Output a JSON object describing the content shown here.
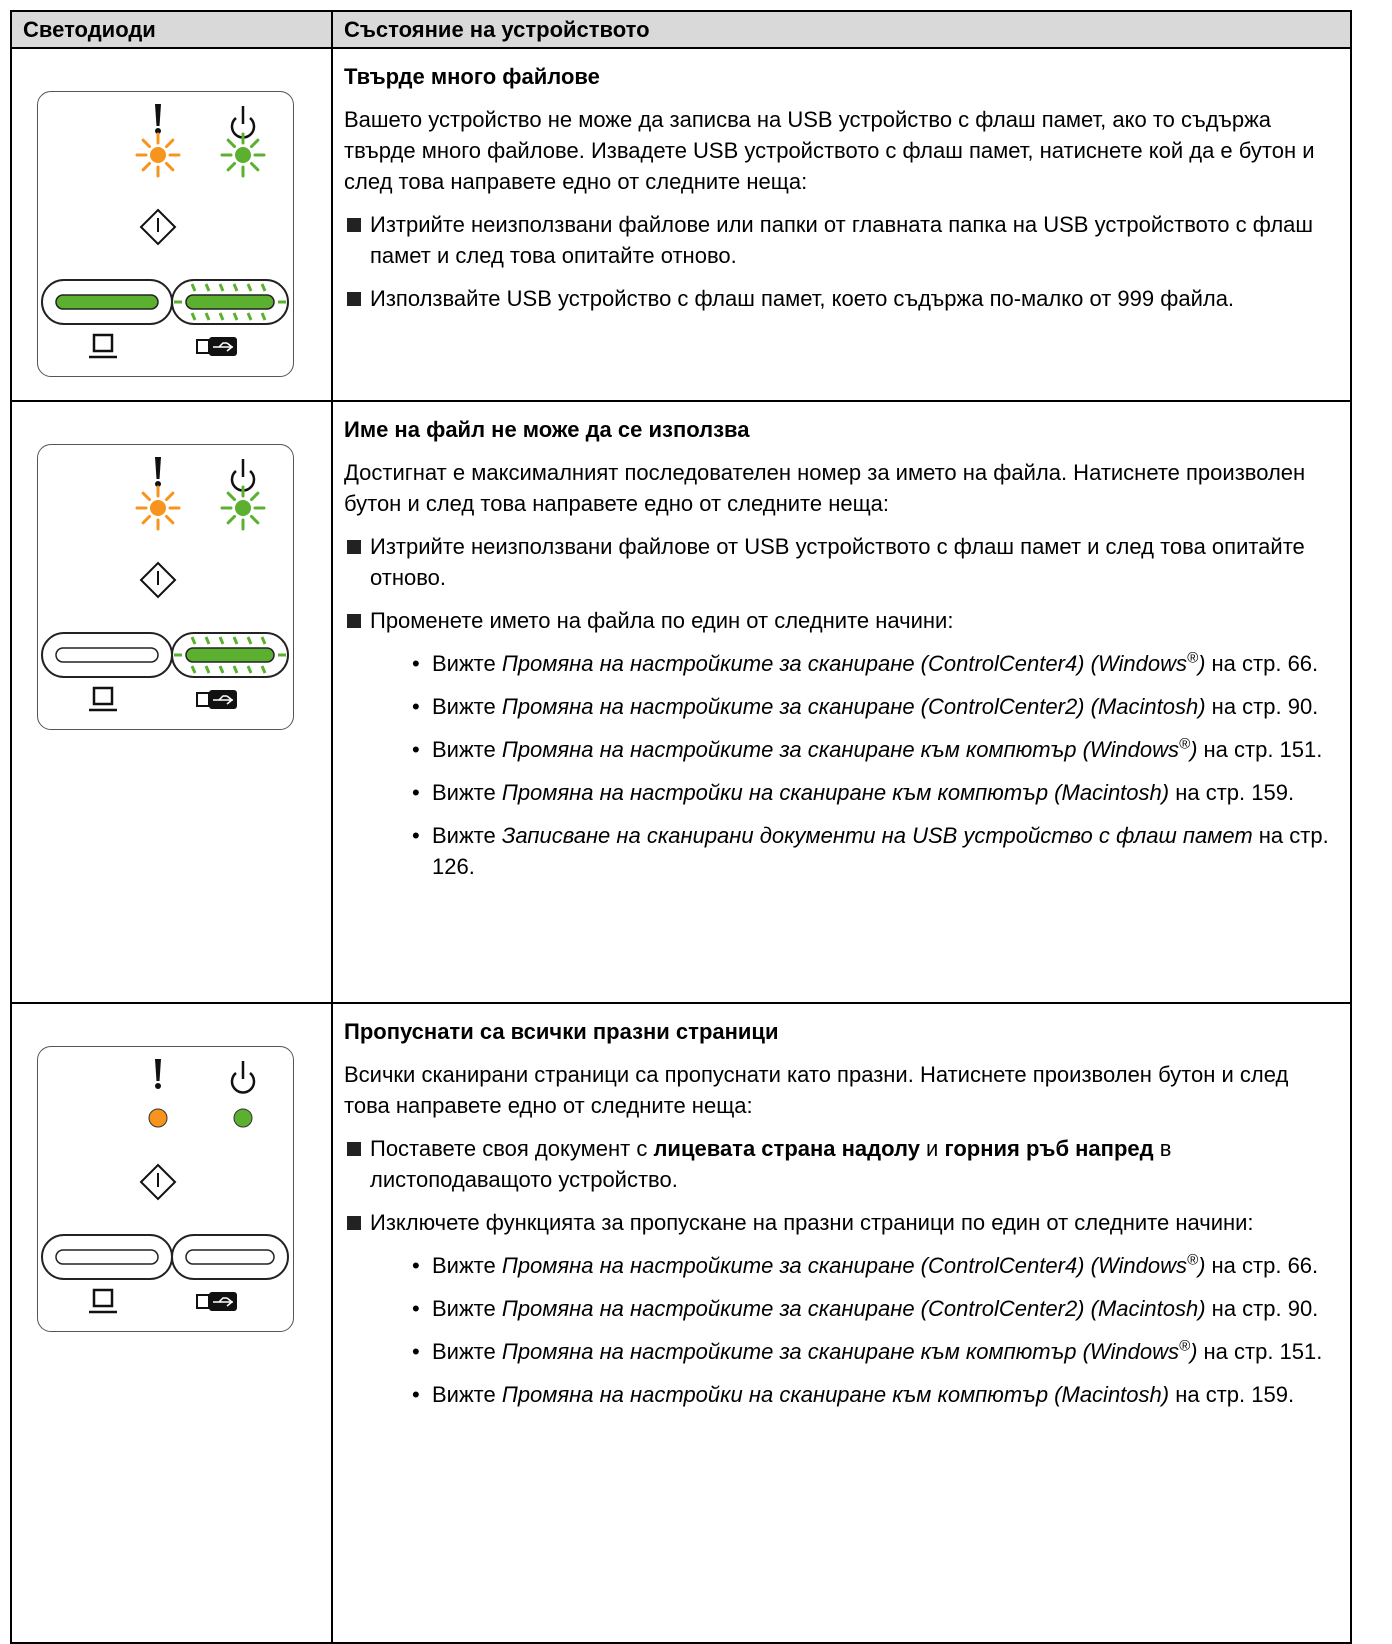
{
  "table": {
    "header": [
      "Светодиоди",
      "Състояние на устройството"
    ],
    "rows": [
      {
        "title": "Твърде много файлове",
        "paragraph": "Вашето устройство не може да записва на USB устройство с флаш памет, ако то съдържа твърде много файлове. Извадете USB устройството с флаш памет, натиснете кой да е бутон и след това направете едно от следните неща:",
        "bullets": [
          {
            "text": "Изтрийте неизползвани файлове или папки от главната папка на USB устройството с флаш памет и след това опитайте отново."
          },
          {
            "text": "Използвайте USB устройство с флаш памет, което съдържа по-малко от 999 файла."
          }
        ]
      },
      {
        "title": "Име на файл не може да се използва",
        "paragraph": "Достигнат е максималният последователен номер за името на файла. Натиснете произволен бутон и след това направете едно от следните неща:",
        "bullets": [
          {
            "text": "Изтрийте неизползвани файлове от USB устройството с флаш памет и след това опитайте отново."
          },
          {
            "text": "Променете името на файла по един от следните начини:",
            "refs": [
              {
                "prefix": "Вижте",
                "title": "Промяна на настройките за сканиране (ControlCenter4) (Windows",
                "sup": "®",
                "title_end": ")",
                "page": "на стр. 66."
              },
              {
                "prefix": "Вижте",
                "title": "Промяна на настройките за сканиране (ControlCenter2) (Macintosh)",
                "page": "на стр. 90."
              },
              {
                "prefix": "Вижте",
                "title": "Промяна на настройките за сканиране към компютър (Windows",
                "sup": "®",
                "title_end": ")",
                "page": "на стр. 151."
              },
              {
                "prefix": "Вижте",
                "title": "Промяна на настройки на сканиране към компютър (Macintosh)",
                "page": "на стр. 159."
              },
              {
                "prefix": "Вижте",
                "title": "Записване на сканирани документи на USB устройство с флаш памет",
                "page": "на стр. 126."
              }
            ]
          }
        ]
      },
      {
        "title": "Пропуснати са всички празни страници",
        "paragraph": "Всички сканирани страници са пропуснати като празни. Натиснете произволен бутон и след това направете едно от следните неща:",
        "bullets": [
          {
            "segments": [
              {
                "text": "Поставете своя документ с "
              },
              {
                "text": "лицевата страна надолу",
                "bold": true
              },
              {
                "text": " и "
              },
              {
                "text": "горния ръб напред",
                "bold": true
              },
              {
                "text": " в листоподаващото устройство."
              }
            ]
          },
          {
            "text": "Изключете функцията за пропускане на празни страници по един от следните начини:",
            "refs": [
              {
                "prefix": "Вижте",
                "title": "Промяна на настройките за сканиране (ControlCenter4) (Windows",
                "sup": "®",
                "title_end": ")",
                "page": "на стр. 66."
              },
              {
                "prefix": "Вижте",
                "title": "Промяна на настройките за сканиране (ControlCenter2) (Macintosh)",
                "page": "на стр. 90."
              },
              {
                "prefix": "Вижте",
                "title": "Промяна на настройките за сканиране към компютър (Windows",
                "sup": "®",
                "title_end": ")",
                "page": "на стр. 151."
              },
              {
                "prefix": "Вижте",
                "title": "Промяна на настройки на сканиране към компютър (Macintosh)",
                "page": "на стр. 159."
              }
            ]
          }
        ]
      }
    ]
  }
}
